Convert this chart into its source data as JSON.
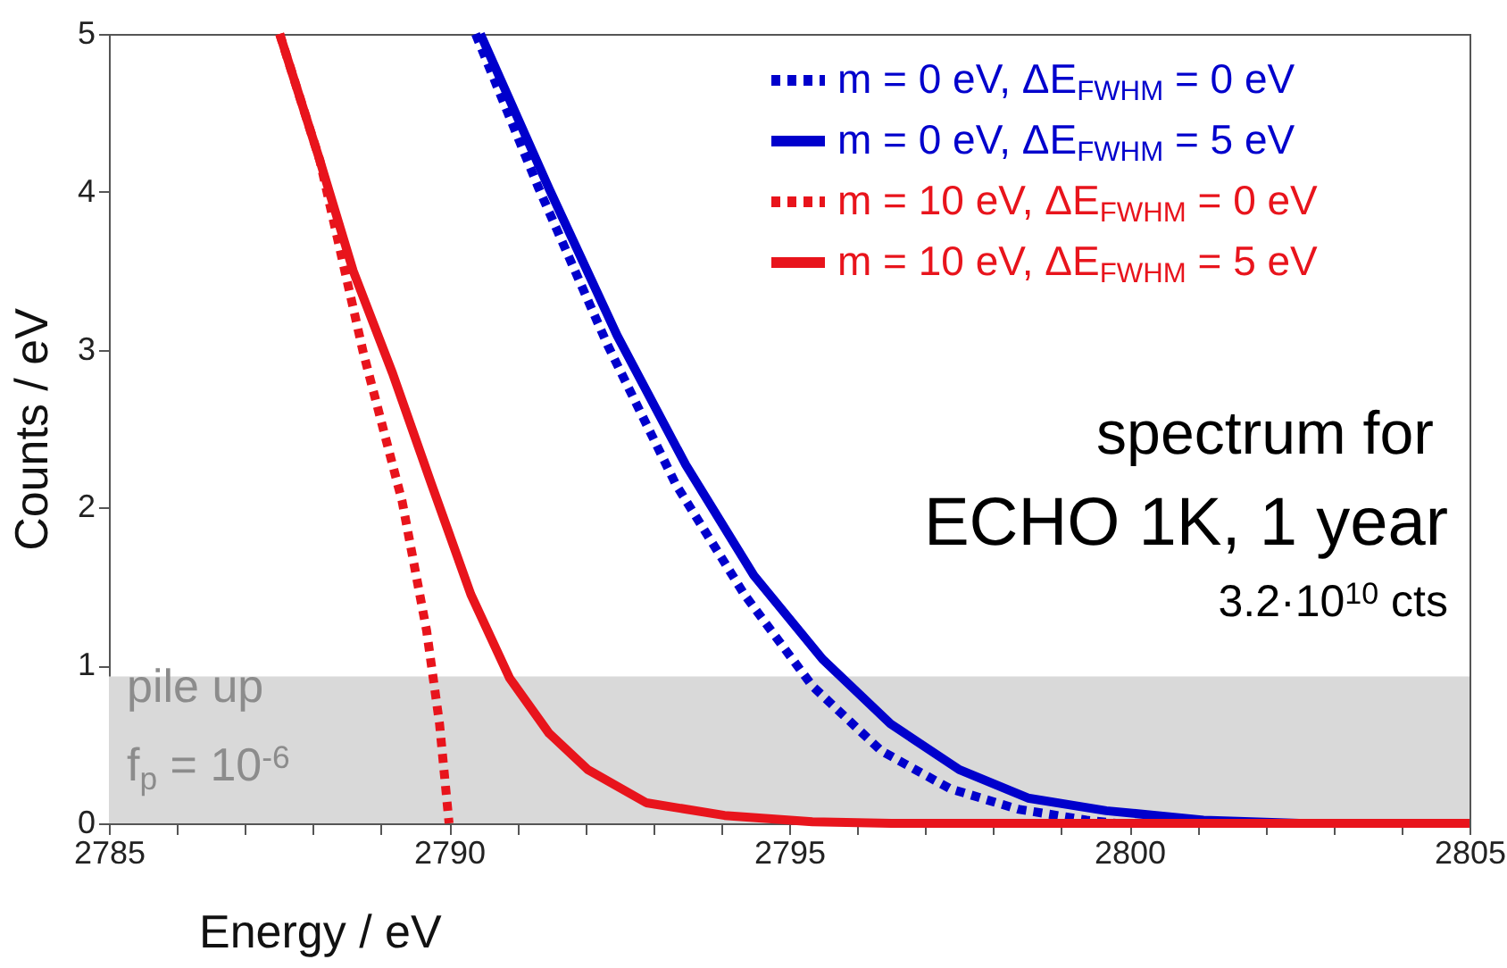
{
  "chart_data": {
    "type": "line",
    "xlabel": "Energy / eV",
    "ylabel": "Counts / eV",
    "xlim": [
      2785,
      2805
    ],
    "ylim": [
      0,
      5
    ],
    "xticks": [
      2785,
      {
        "value": 2786,
        "label": null
      },
      {
        "value": 2787,
        "label": null
      },
      {
        "value": 2788,
        "label": null
      },
      {
        "value": 2789,
        "label": null
      },
      2790,
      {
        "value": 2791,
        "label": null
      },
      {
        "value": 2792,
        "label": null
      },
      {
        "value": 2793,
        "label": null
      },
      {
        "value": 2794,
        "label": null
      },
      2795,
      {
        "value": 2796,
        "label": null
      },
      {
        "value": 2797,
        "label": null
      },
      {
        "value": 2798,
        "label": null
      },
      {
        "value": 2799,
        "label": null
      },
      2800,
      {
        "value": 2801,
        "label": null
      },
      {
        "value": 2802,
        "label": null
      },
      {
        "value": 2803,
        "label": null
      },
      {
        "value": 2804,
        "label": null
      },
      2805
    ],
    "yticks": [
      0,
      1,
      2,
      3,
      4,
      5
    ],
    "grid": false,
    "legend": "top right",
    "marker": "none",
    "series": [
      {
        "name": "m =   0 eV, ΔE$_{FWHM}$ = 0 eV",
        "color": "#0000cc",
        "line_style": "dotted",
        "x": [
          2790.39,
          2791.32,
          2792.33,
          2793.33,
          2794.34,
          2795.34,
          2796.35,
          2797.36,
          2798.36,
          2799.37,
          2799.8
        ],
        "values": [
          5,
          4.02,
          3.03,
          2.15,
          1.45,
          0.87,
          0.46,
          0.22,
          0.09,
          0.02,
          0
        ]
      },
      {
        "name": "m =   0 eV, ΔE$_{FWHM}$ = 5 eV",
        "color": "#0000cc",
        "line_style": "solid",
        "x": [
          2790.46,
          2791.47,
          2792.47,
          2793.48,
          2794.48,
          2795.49,
          2796.49,
          2797.5,
          2798.51,
          2799.66,
          2801.09,
          2802.5,
          2805
        ],
        "values": [
          5,
          4.02,
          3.09,
          2.27,
          1.57,
          1.04,
          0.63,
          0.34,
          0.16,
          0.08,
          0.02,
          0,
          0
        ]
      },
      {
        "name": "m = 10 eV, ΔE$_{FWHM}$ = 0 eV",
        "color": "#e8141c",
        "line_style": "dotted",
        "x": [
          2787.51,
          2788.1,
          2788.74,
          2789.31,
          2789.67,
          2789.86,
          2790
        ],
        "values": [
          5,
          4.2,
          2.98,
          2.04,
          1.22,
          0.63,
          0
        ]
      },
      {
        "name": "m = 10 eV, ΔE$_{FWHM}$ = 5 eV",
        "color": "#e8141c",
        "line_style": "solid",
        "x": [
          2787.51,
          2788.1,
          2788.59,
          2789.17,
          2789.74,
          2790.32,
          2790.89,
          2791.47,
          2792.04,
          2792.9,
          2794.05,
          2795.34,
          2796.5,
          2805
        ],
        "values": [
          5,
          4.2,
          3.5,
          2.85,
          2.15,
          1.45,
          0.92,
          0.57,
          0.34,
          0.13,
          0.05,
          0.01,
          0,
          0
        ]
      }
    ],
    "bands": [
      {
        "axis": "y",
        "from": 0,
        "to": 0.93,
        "label": "pile up",
        "color": "#d9d9d9"
      }
    ],
    "annotations": [
      "spectrum for",
      "ECHO 1K, 1 year",
      "3.2·10$^{10}$ cts",
      "f$_{p}$ = 10$^{-6}$"
    ]
  }
}
